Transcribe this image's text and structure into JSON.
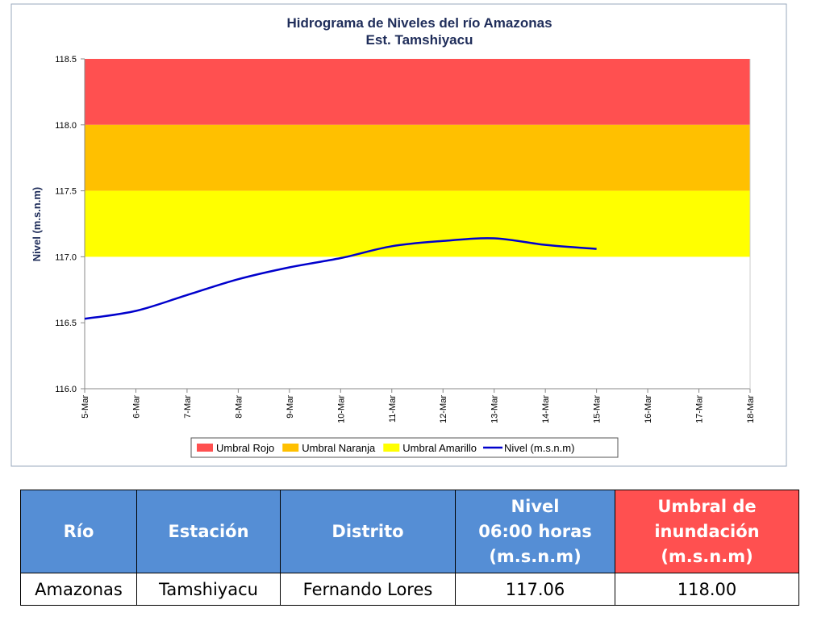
{
  "chart_data": {
    "type": "line",
    "title": "Hidrograma de Niveles del río Amazonas",
    "subtitle": "Est. Tamshiyacu",
    "ylabel": "Nivel (m.s.n.m)",
    "categories": [
      "5-Mar",
      "6-Mar",
      "7-Mar",
      "8-Mar",
      "9-Mar",
      "10-Mar",
      "11-Mar",
      "12-Mar",
      "13-Mar",
      "14-Mar",
      "15-Mar",
      "16-Mar",
      "17-Mar",
      "18-Mar"
    ],
    "bands": [
      {
        "name": "Umbral Rojo",
        "color": "#ff5050",
        "from": 118,
        "to": 118.5
      },
      {
        "name": "Umbral Naranja",
        "color": "#ffc000",
        "from": 117.5,
        "to": 118
      },
      {
        "name": "Umbral Amarillo",
        "color": "#ffff00",
        "from": 117,
        "to": 117.5
      }
    ],
    "series": [
      {
        "name": "Nivel (m.s.n.m)",
        "color": "#0000cc",
        "values": [
          116.53,
          116.59,
          116.71,
          116.83,
          116.92,
          116.99,
          117.08,
          117.12,
          117.14,
          117.09,
          117.06,
          null,
          null,
          null
        ]
      }
    ],
    "ylim": [
      116,
      118.5
    ],
    "yticks": [
      {
        "value": 116,
        "label": "116.0"
      },
      116.5,
      {
        "value": 117,
        "label": "117.0"
      },
      117.5,
      {
        "value": 118,
        "label": "118.0"
      },
      118.5
    ]
  },
  "table": {
    "header": [
      "Río",
      "Estación",
      "Distrito",
      "Nivel\n06:00 horas\n(m.s.n.m)",
      "Umbral de\ninundación\n(m.s.n.m)"
    ],
    "rows": [
      [
        "Amazonas",
        "Tamshiyacu",
        "Fernando Lores",
        "117.06",
        "118.00"
      ]
    ]
  }
}
